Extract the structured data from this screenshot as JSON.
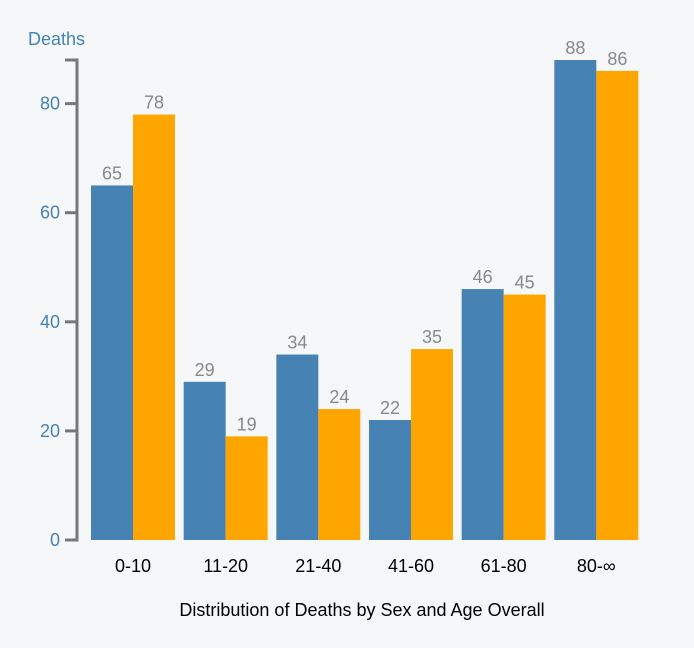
{
  "chart_data": {
    "type": "bar",
    "title": "Distribution of Deaths by Sex and Age Overall",
    "xlabel": "Distribution of Deaths by Sex and Age Overall",
    "ylabel": "Deaths",
    "categories": [
      "0-10",
      "11-20",
      "21-40",
      "41-60",
      "61-80",
      "80-∞"
    ],
    "series": [
      {
        "name": "Series 1",
        "color": "#4682b4",
        "values": [
          65,
          29,
          34,
          22,
          46,
          88
        ]
      },
      {
        "name": "Series 2",
        "color": "#ffa500",
        "values": [
          78,
          19,
          24,
          35,
          45,
          86
        ]
      }
    ],
    "ylim": [
      0,
      88
    ],
    "yticks": [
      0,
      20,
      40,
      60,
      80
    ],
    "axis_color": "#4682b4",
    "label_color": "#888888"
  }
}
